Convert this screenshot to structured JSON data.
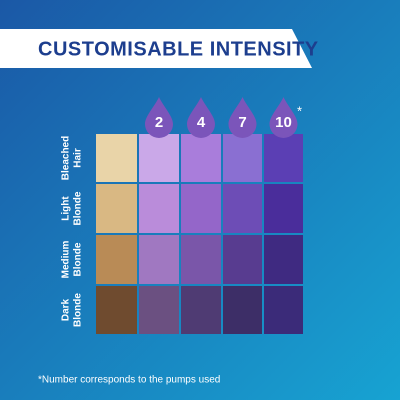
{
  "header": {
    "title": "CUSTOMISABLE INTENSITY"
  },
  "pumps": [
    2,
    4,
    7,
    10
  ],
  "pumps_note_mark": "*",
  "rows": [
    [
      "Bleached",
      "Hair"
    ],
    [
      "Light",
      "Blonde"
    ],
    [
      "Medium",
      "Blonde"
    ],
    [
      "Dark",
      "Blonde"
    ]
  ],
  "footnote": "*Number corresponds to the pumps used"
}
